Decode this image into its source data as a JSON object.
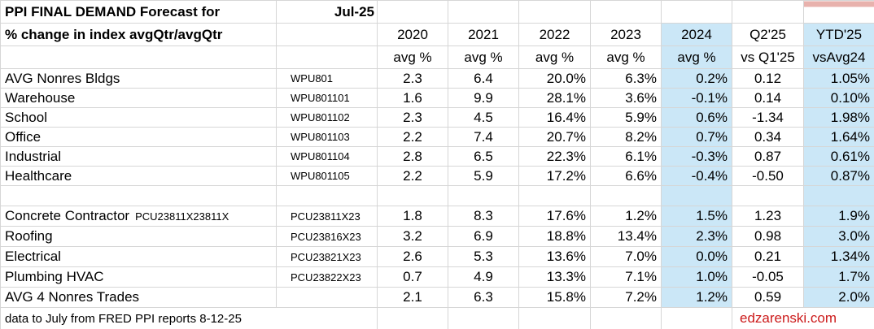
{
  "sheet": {
    "title": "PPI FINAL DEMAND Forecast for",
    "title_date": "Jul-25",
    "subtitle": "% change in index avgQtr/avgQtr",
    "footer_note": "data to July from FRED PPI reports 8-12-25",
    "credit": "edzarenski.com"
  },
  "columns": {
    "years": [
      "2020",
      "2021",
      "2022",
      "2023",
      "2024",
      "Q2'25",
      "YTD'25"
    ],
    "subheaders": [
      "avg %",
      "avg %",
      "avg %",
      "avg %",
      "avg %",
      "vs Q1'25",
      "vsAvg24"
    ]
  },
  "rows": [
    {
      "label": "AVG Nonres Bldgs",
      "label_suffix": "",
      "code": "WPU801",
      "values": [
        "2.3",
        "6.4",
        "20.0%",
        "6.3%",
        "0.2%",
        "0.12",
        "1.05%"
      ]
    },
    {
      "label": "Warehouse",
      "label_suffix": "",
      "code": "WPU801101",
      "values": [
        "1.6",
        "9.9",
        "28.1%",
        "3.6%",
        "-0.1%",
        "0.14",
        "0.10%"
      ]
    },
    {
      "label": "School",
      "label_suffix": "",
      "code": "WPU801102",
      "values": [
        "2.3",
        "4.5",
        "16.4%",
        "5.9%",
        "0.6%",
        "-1.34",
        "1.98%"
      ]
    },
    {
      "label": "Office",
      "label_suffix": "",
      "code": "WPU801103",
      "values": [
        "2.2",
        "7.4",
        "20.7%",
        "8.2%",
        "0.7%",
        "0.34",
        "1.64%"
      ]
    },
    {
      "label": "Industrial",
      "label_suffix": "",
      "code": "WPU801104",
      "values": [
        "2.8",
        "6.5",
        "22.3%",
        "6.1%",
        "-0.3%",
        "0.87",
        "0.61%"
      ]
    },
    {
      "label": "Healthcare",
      "label_suffix": "",
      "code": "WPU801105",
      "values": [
        "2.2",
        "5.9",
        "17.2%",
        "6.6%",
        "-0.4%",
        "-0.50",
        "0.87%"
      ]
    },
    {
      "blank": true,
      "label": "",
      "label_suffix": "",
      "code": "",
      "values": [
        "",
        "",
        "",
        "",
        "",
        "",
        ""
      ]
    },
    {
      "label": "Concrete Contractor",
      "label_suffix": "PCU23811X23811X",
      "code": "PCU23811X23",
      "values": [
        "1.8",
        "8.3",
        "17.6%",
        "1.2%",
        "1.5%",
        "1.23",
        "1.9%"
      ]
    },
    {
      "label": "Roofing",
      "label_suffix": "",
      "code": "PCU23816X23",
      "values": [
        "3.2",
        "6.9",
        "18.8%",
        "13.4%",
        "2.3%",
        "0.98",
        "3.0%"
      ]
    },
    {
      "label": "Electrical",
      "label_suffix": "",
      "code": "PCU23821X23",
      "values": [
        "2.6",
        "5.3",
        "13.6%",
        "7.0%",
        "0.0%",
        "0.21",
        "1.34%"
      ]
    },
    {
      "label": "Plumbing HVAC",
      "label_suffix": "",
      "code": "PCU23822X23",
      "values": [
        "0.7",
        "4.9",
        "13.3%",
        "7.1%",
        "1.0%",
        "-0.05",
        "1.7%"
      ]
    },
    {
      "label": "AVG 4 Nonres Trades",
      "label_suffix": "",
      "code": "",
      "values": [
        "2.1",
        "6.3",
        "15.8%",
        "7.2%",
        "1.2%",
        "0.59",
        "2.0%"
      ]
    }
  ],
  "colors": {
    "highlight_blue": "#cbe7f7",
    "highlight_pink": "#e8b2ad",
    "credit_red": "#cc1a1a",
    "gridline": "#d6d6d6"
  }
}
